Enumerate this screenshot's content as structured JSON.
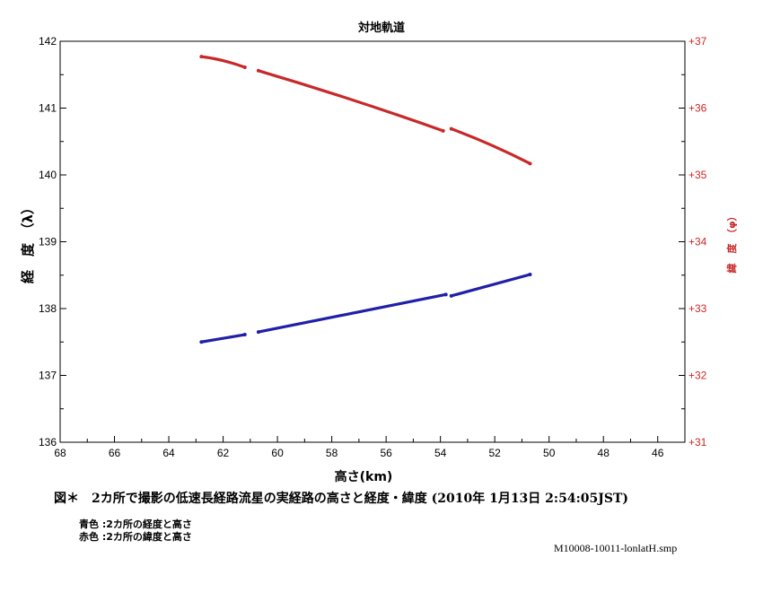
{
  "chart_data": {
    "type": "scatter",
    "title": "対地軌道",
    "xlabel": "高さ(km)",
    "ylabel_left": "経　度　（λ）",
    "ylabel_right": "緯　度　（φ）",
    "x_range": [
      68,
      45
    ],
    "x_ticks": [
      68,
      66,
      64,
      62,
      60,
      58,
      56,
      54,
      52,
      50,
      48,
      46
    ],
    "y_left_range": [
      136,
      142
    ],
    "y_left_ticks": [
      136,
      137,
      138,
      139,
      140,
      141,
      142
    ],
    "y_right_range": [
      31,
      37
    ],
    "y_right_ticks": [
      "+31",
      "+32",
      "+33",
      "+34",
      "+35",
      "+36",
      "+37"
    ],
    "grid": false,
    "series": [
      {
        "color": "#1f1fa8",
        "axis": "left",
        "segments": [
          [
            [
              62.8,
              137.5
            ],
            [
              61.2,
              137.61
            ]
          ],
          [
            [
              60.7,
              137.65
            ],
            [
              53.8,
              138.21
            ]
          ],
          [
            [
              53.6,
              138.19
            ],
            [
              50.7,
              138.51
            ]
          ]
        ]
      },
      {
        "color": "#c82828",
        "axis": "right",
        "segments": [
          [
            [
              62.8,
              36.77
            ],
            [
              61.2,
              36.61
            ]
          ],
          [
            [
              60.7,
              36.56
            ],
            [
              53.9,
              35.66
            ]
          ],
          [
            [
              53.6,
              35.69
            ],
            [
              50.7,
              35.17
            ]
          ]
        ]
      }
    ]
  },
  "colors": {
    "axis": "#000000",
    "right_axis": "#c82828",
    "blue_series": "#1f1fa8",
    "red_series": "#c82828"
  },
  "caption": "図＊　2カ所で撮影の低速長経路流星の実経路の高さと経度・緯度 (2010年 1月13日 2:54:05JST)",
  "notes": [
    "青色 :2カ所の経度と高さ",
    "赤色 :2カ所の緯度と高さ"
  ],
  "filename": "M10008-10011-lonlatH.smp"
}
